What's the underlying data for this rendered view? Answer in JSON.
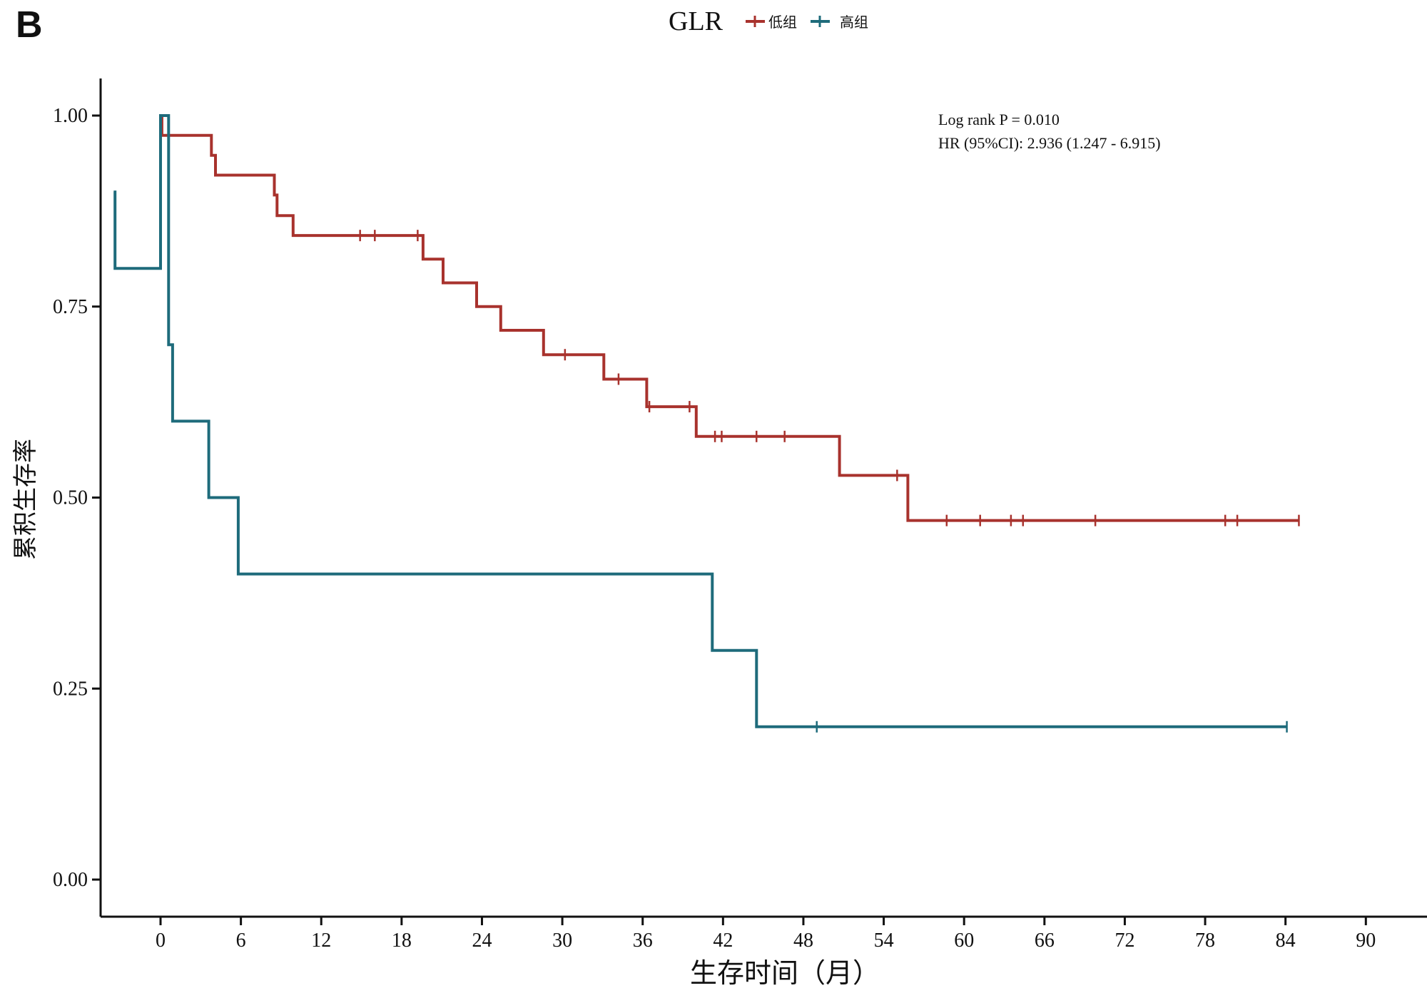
{
  "panel_label": "B",
  "chart_data": {
    "type": "line",
    "subtype": "kaplan-meier-step",
    "title": "",
    "xlabel": "生存时间（月）",
    "ylabel": "累积生存率",
    "xlim": [
      -3.5,
      94
    ],
    "ylim": [
      -0.05,
      1.05
    ],
    "xticks": [
      0,
      6,
      12,
      18,
      24,
      30,
      36,
      42,
      48,
      54,
      60,
      66,
      72,
      78,
      84,
      90
    ],
    "yticks": [
      0.0,
      0.25,
      0.5,
      0.75,
      1.0
    ],
    "ytick_labels": [
      "0.00",
      "0.25",
      "0.50",
      "0.75",
      "1.00"
    ],
    "grid": false,
    "legend": {
      "title": "GLR",
      "position": "top-center",
      "entries": [
        "低组",
        "高组"
      ]
    },
    "annotations": [
      "Log rank P = 0.010",
      "HR (95%CI): 2.936 (1.247 - 6.915)"
    ],
    "series": [
      {
        "name": "低组",
        "color": "#a8322d",
        "steps": [
          [
            0.0,
            1.0
          ],
          [
            0.1,
            0.974
          ],
          [
            3.8,
            0.948
          ],
          [
            4.1,
            0.922
          ],
          [
            8.5,
            0.896
          ],
          [
            8.7,
            0.869
          ],
          [
            9.9,
            0.843
          ],
          [
            19.6,
            0.812
          ],
          [
            21.1,
            0.781
          ],
          [
            23.6,
            0.75
          ],
          [
            25.4,
            0.719
          ],
          [
            28.6,
            0.687
          ],
          [
            33.1,
            0.655
          ],
          [
            36.3,
            0.619
          ],
          [
            40.0,
            0.58
          ],
          [
            50.7,
            0.529
          ],
          [
            55.8,
            0.47
          ],
          [
            85.0,
            0.47
          ]
        ],
        "censor_times": [
          14.9,
          16.0,
          19.2,
          30.2,
          34.2,
          36.5,
          39.5,
          41.4,
          41.9,
          44.5,
          46.6,
          55.0,
          58.7,
          61.2,
          63.5,
          64.4,
          69.8,
          79.5,
          80.4,
          85.0
        ]
      },
      {
        "name": "高组",
        "color": "#1e6b7b",
        "steps": [
          [
            -3.5,
            0.9
          ],
          [
            -3.4,
            0.8
          ],
          [
            0.0,
            1.0
          ],
          [
            0.6,
            0.7
          ],
          [
            0.9,
            0.6
          ],
          [
            3.6,
            0.5
          ],
          [
            5.8,
            0.4
          ],
          [
            41.2,
            0.3
          ],
          [
            44.5,
            0.2
          ],
          [
            84.1,
            0.2
          ]
        ],
        "censor_times": [
          49.0,
          84.1
        ]
      }
    ]
  }
}
